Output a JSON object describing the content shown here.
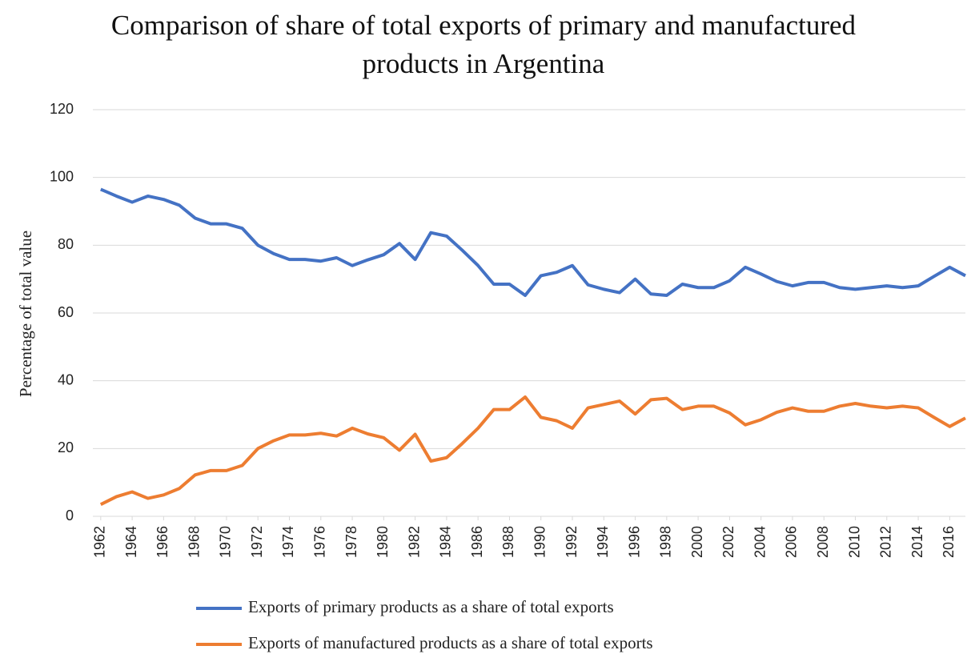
{
  "chart_data": {
    "type": "line",
    "title": "Comparison of share of total exports of primary and manufactured products in Argentina",
    "y_label": "Percentage of total value",
    "x": [
      1962,
      1963,
      1964,
      1965,
      1966,
      1967,
      1968,
      1969,
      1970,
      1971,
      1972,
      1973,
      1974,
      1975,
      1976,
      1977,
      1978,
      1979,
      1980,
      1981,
      1982,
      1983,
      1984,
      1985,
      1986,
      1987,
      1988,
      1989,
      1990,
      1991,
      1992,
      1993,
      1994,
      1995,
      1996,
      1997,
      1998,
      1999,
      2000,
      2001,
      2002,
      2003,
      2004,
      2005,
      2006,
      2007,
      2008,
      2009,
      2010,
      2011,
      2012,
      2013,
      2014,
      2015,
      2016,
      2017
    ],
    "series": [
      {
        "name": "Exports of primary products as a share of total exports",
        "color": "#4472c4",
        "values": [
          96.5,
          94.5,
          92.7,
          94.5,
          93.5,
          91.8,
          88,
          86.3,
          86.3,
          85,
          80,
          77.5,
          75.8,
          75.8,
          75.3,
          76.3,
          74,
          75.7,
          77.2,
          80.5,
          75.8,
          83.7,
          82.7,
          78.5,
          74,
          68.5,
          68.5,
          65.2,
          71,
          72,
          74,
          68.3,
          67,
          66,
          70,
          65.6,
          65.2,
          68.5,
          67.5,
          67.5,
          69.5,
          73.5,
          71.5,
          69.3,
          68,
          69,
          69,
          67.5,
          67,
          67.5,
          68,
          67.5,
          68,
          70.8,
          73.5,
          71
        ]
      },
      {
        "name": "Exports of manufactured products as a share of total exports",
        "color": "#ed7d31",
        "values": [
          3.5,
          5.8,
          7.2,
          5.3,
          6.3,
          8.2,
          12.2,
          13.5,
          13.5,
          15,
          20,
          22.3,
          24,
          24,
          24.5,
          23.7,
          26,
          24.3,
          23.2,
          19.5,
          24.2,
          16.3,
          17.3,
          21.5,
          26,
          31.5,
          31.5,
          35.2,
          29.2,
          28.2,
          26,
          32,
          33,
          34,
          30.2,
          34.4,
          34.8,
          31.5,
          32.5,
          32.5,
          30.5,
          27,
          28.5,
          30.7,
          32,
          31,
          31,
          32.5,
          33.3,
          32.5,
          32,
          32.5,
          32,
          29.2,
          26.5,
          29
        ]
      }
    ],
    "xlim": [
      1961.5,
      2017
    ],
    "xticks": [
      1962,
      1964,
      1966,
      1968,
      1970,
      1972,
      1974,
      1976,
      1978,
      1980,
      1982,
      1984,
      1986,
      1988,
      1990,
      1992,
      1994,
      1996,
      1998,
      2000,
      2002,
      2004,
      2006,
      2008,
      2010,
      2012,
      2014,
      2016
    ],
    "ylim": [
      0,
      120
    ],
    "yticks": [
      0,
      20,
      40,
      60,
      80,
      100,
      120
    ],
    "grid": true,
    "legend": "bottom"
  }
}
